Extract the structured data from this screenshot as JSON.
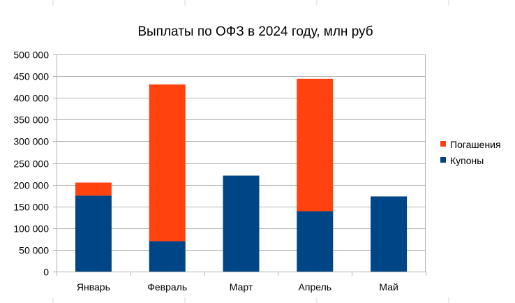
{
  "chart_data": {
    "type": "bar",
    "stacked": true,
    "title": "Выплаты по ОФЗ в 2024 году, млн руб",
    "xlabel": "",
    "ylabel": "",
    "categories": [
      "Январь",
      "Февраль",
      "Март",
      "Апрель",
      "Май"
    ],
    "series": [
      {
        "name": "Купоны",
        "color": "#004586",
        "values": [
          175000,
          70000,
          221000,
          139000,
          173000
        ]
      },
      {
        "name": "Погашения",
        "color": "#ff420e",
        "values": [
          30000,
          361000,
          0,
          305000,
          0
        ]
      }
    ],
    "ylim": [
      0,
      500000
    ],
    "yticks": [
      0,
      50000,
      100000,
      150000,
      200000,
      250000,
      300000,
      350000,
      400000,
      450000,
      500000
    ],
    "ytick_labels": [
      "0",
      "50 000",
      "100 000",
      "150 000",
      "200 000",
      "250 000",
      "300 000",
      "350 000",
      "400 000",
      "450 000",
      "500 000"
    ],
    "legend_order": [
      "Погашения",
      "Купоны"
    ],
    "legend_position": "right",
    "grid": true
  }
}
